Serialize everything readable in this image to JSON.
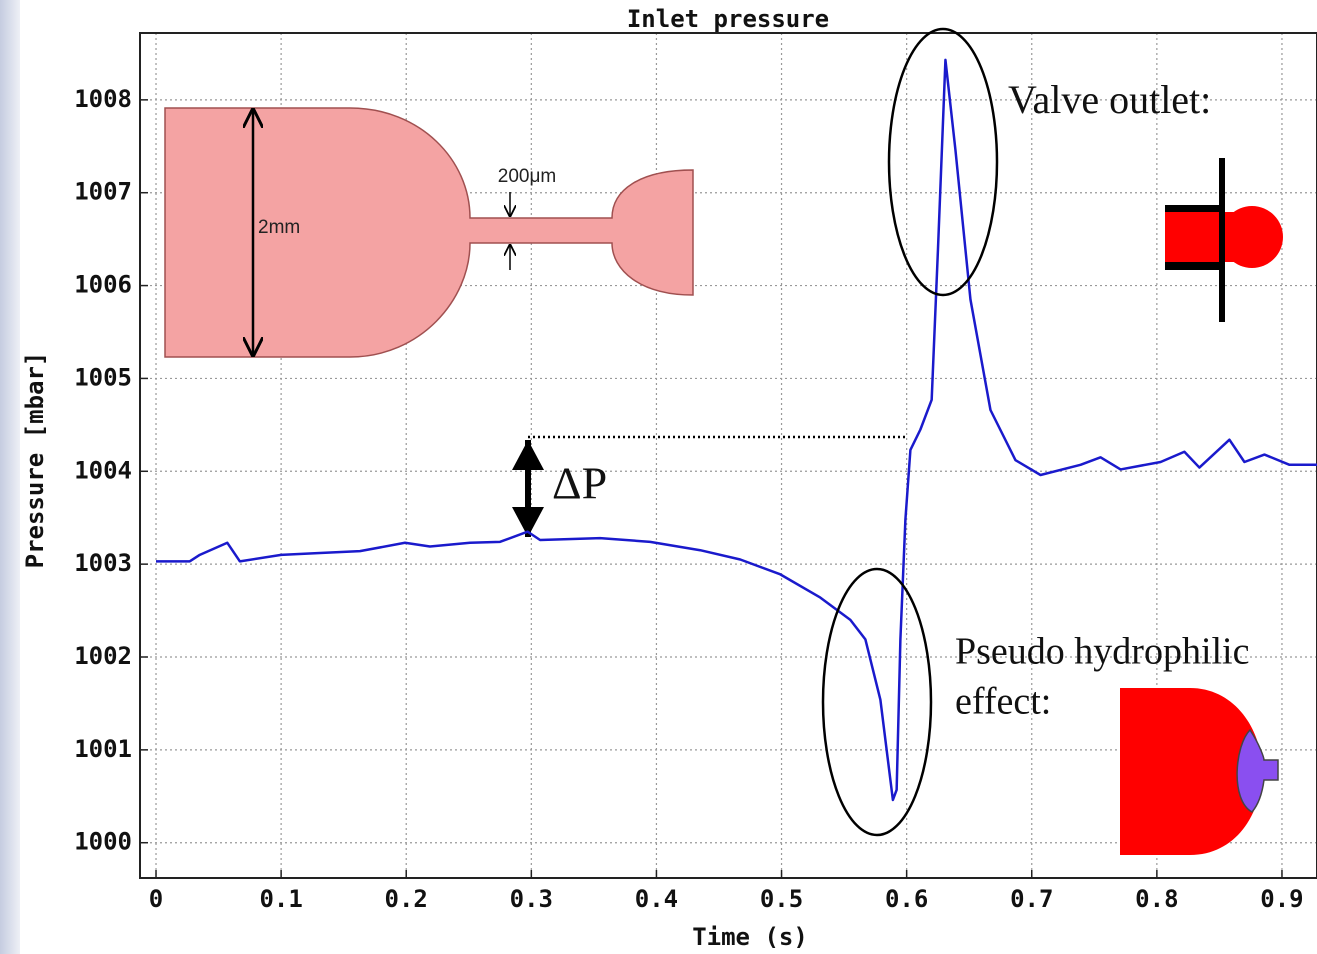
{
  "chart_data": {
    "type": "line",
    "title": "Inlet pressure",
    "x_label": "Time (s)",
    "y_label": "Pressure  [mbar]",
    "x": [
      0,
      0.027,
      0.035,
      0.057,
      0.067,
      0.1,
      0.131,
      0.163,
      0.199,
      0.219,
      0.251,
      0.275,
      0.297,
      0.307,
      0.355,
      0.395,
      0.435,
      0.467,
      0.499,
      0.531,
      0.555,
      0.567,
      0.579,
      0.589,
      0.592,
      0.595,
      0.599,
      0.603,
      0.611,
      0.62,
      0.625,
      0.631,
      0.639,
      0.651,
      0.667,
      0.687,
      0.707,
      0.739,
      0.755,
      0.771,
      0.803,
      0.822,
      0.834,
      0.858,
      0.87,
      0.886,
      0.906,
      0.928
    ],
    "series": [
      {
        "name": "Inlet pressure",
        "color": "#1a1acc",
        "values": [
          1003.03,
          1003.03,
          1003.1,
          1003.23,
          1003.03,
          1003.1,
          1003.12,
          1003.14,
          1003.23,
          1003.19,
          1003.23,
          1003.24,
          1003.35,
          1003.26,
          1003.28,
          1003.24,
          1003.15,
          1003.05,
          1002.89,
          1002.64,
          1002.4,
          1002.19,
          1001.54,
          1000.46,
          1000.57,
          1002.19,
          1003.48,
          1004.23,
          1004.45,
          1004.77,
          1006.38,
          1008.43,
          1007.46,
          1005.85,
          1004.66,
          1004.12,
          1003.96,
          1004.07,
          1004.15,
          1004.02,
          1004.1,
          1004.21,
          1004.04,
          1004.34,
          1004.1,
          1004.18,
          1004.07,
          1004.07
        ]
      }
    ],
    "xlim": [
      -0.0128,
      0.928
    ],
    "ylim": [
      999.62,
      1008.72
    ],
    "xticks": [
      0,
      0.1,
      0.2,
      0.3,
      0.4,
      0.5,
      0.6,
      0.7,
      0.8,
      0.9
    ],
    "yticks": [
      1000,
      1001,
      1002,
      1003,
      1004,
      1005,
      1006,
      1007,
      1008
    ],
    "grid": true,
    "annotations": [
      "Valve outlet:",
      "Pseudo hydrophilic",
      "effect:",
      "ΔP",
      "2mm",
      "200μm"
    ]
  }
}
